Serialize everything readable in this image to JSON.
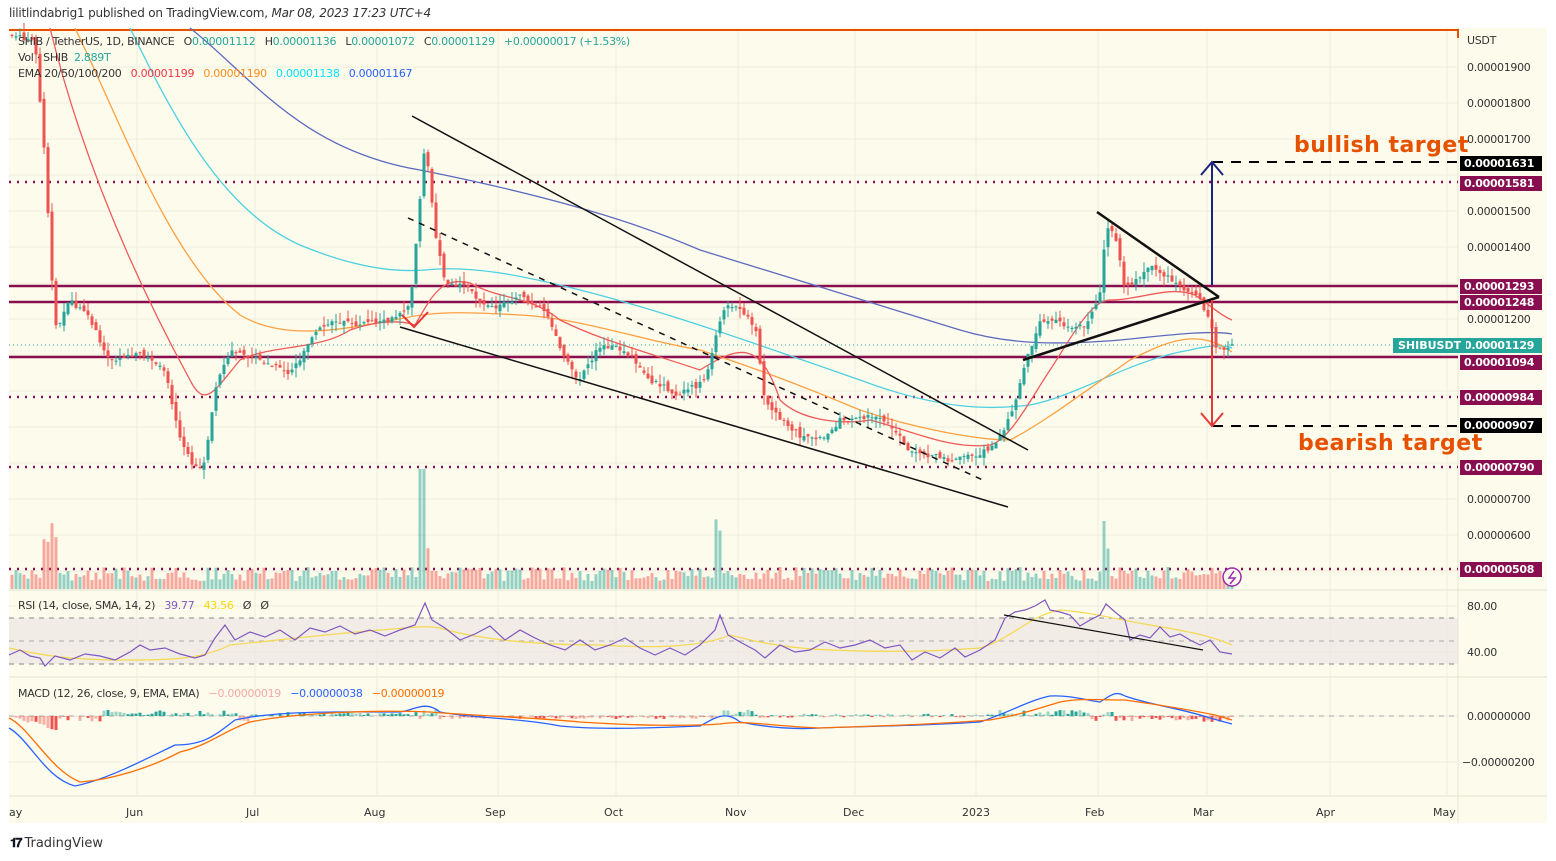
{
  "publish": {
    "author": "lilitlindabrig1",
    "text": "published on TradingView.com,",
    "date": "Mar 08, 2023 17:23 UTC+4"
  },
  "legend": {
    "symbol": "SHIB / TetherUS, 1D, BINANCE",
    "open_label": "O",
    "open": "0.00001112",
    "high_label": "H",
    "high": "0.00001136",
    "low_label": "L",
    "low": "0.00001072",
    "close_label": "C",
    "close": "0.00001129",
    "change": "+0.00000017 (+1.53%)",
    "vol_label": "Vol · SHIB",
    "vol": "2.889T",
    "ema_label": "EMA 20/50/100/200",
    "ema20": "0.00001199",
    "ema50": "0.00001190",
    "ema100": "0.00001138",
    "ema200": "0.00001167"
  },
  "rsi_legend": {
    "label": "RSI (14, close, SMA, 14, 2)",
    "rsi": "39.77",
    "sma": "43.56",
    "na1": "Ø",
    "na2": "Ø"
  },
  "macd_legend": {
    "label": "MACD (12, 26, close, 9, EMA, EMA)",
    "hist": "−0.00000019",
    "macd": "−0.00000038",
    "signal": "−0.00000019"
  },
  "price_axis": {
    "currency": "USDT",
    "ticks": [
      "0.00001900",
      "0.00001800",
      "0.00001700",
      "0.00001500",
      "0.00001400",
      "0.00001200",
      "0.00000700",
      "0.00000600"
    ]
  },
  "rsi_axis": {
    "ticks": [
      "80.00",
      "40.00"
    ]
  },
  "macd_axis": {
    "ticks": [
      "0.00000000",
      "−0.00000200"
    ]
  },
  "price_tags": {
    "bull_target": "0.00001631",
    "r1581": "0.00001581",
    "r1293": "0.00001293",
    "r1248": "0.00001248",
    "last": "0.00001129",
    "s1094": "0.00001094",
    "s984": "0.00000984",
    "bear_target": "0.00000907",
    "s790": "0.00000790",
    "s508": "0.00000508",
    "symbol": "SHIBUSDT"
  },
  "annotations": {
    "bullish": "bullish target",
    "bearish": "bearish target"
  },
  "time_axis": [
    "ay",
    "Jun",
    "Jul",
    "Aug",
    "Sep",
    "Oct",
    "Nov",
    "Dec",
    "2023",
    "Feb",
    "Mar",
    "Apr",
    "May"
  ],
  "footer": {
    "brand": "TradingView"
  },
  "colors": {
    "background": "#fdfbec",
    "up": "#26a69a",
    "down": "#ef5350",
    "level": "#880e4f",
    "annotation": "#e65100",
    "ema20": "#f23645",
    "ema50": "#ff9800",
    "ema100": "#4dd0e1",
    "ema200": "#3f51f5"
  },
  "chart_data": {
    "type": "candlestick",
    "title": "SHIB / TetherUS, 1D, BINANCE",
    "xlabel": "",
    "ylabel": "USDT",
    "x_ticks": [
      "May",
      "Jun",
      "Jul",
      "Aug",
      "Sep",
      "Oct",
      "Nov",
      "Dec",
      "2023",
      "Feb",
      "Mar",
      "Apr",
      "May"
    ],
    "ylim": [
      4.5e-06,
      1.95e-05
    ],
    "last_bar": {
      "open": 1.112e-05,
      "high": 1.136e-05,
      "low": 1.072e-05,
      "close": 1.129e-05,
      "change": 1.7e-07,
      "change_pct": 1.53
    },
    "approx_closes_by_month": [
      {
        "month": "May 2022",
        "close": 1.15e-05
      },
      {
        "month": "Jun 2022",
        "close": 9.5e-06
      },
      {
        "month": "Jul 2022",
        "close": 1.17e-05
      },
      {
        "month": "Aug 2022",
        "close": 1.26e-05
      },
      {
        "month": "Sep 2022",
        "close": 1.14e-05
      },
      {
        "month": "Oct 2022",
        "close": 1.05e-05
      },
      {
        "month": "Nov 2022",
        "close": 9.2e-06
      },
      {
        "month": "Dec 2022",
        "close": 8.3e-06
      },
      {
        "month": "Jan 2023",
        "close": 1.2e-05
      },
      {
        "month": "Feb 2023",
        "close": 1.23e-05
      },
      {
        "month": "Mar 2023",
        "close": 1.129e-05
      }
    ],
    "horizontal_levels": [
      {
        "value": 1.631e-05,
        "style": "dashed",
        "label": "bullish target"
      },
      {
        "value": 1.581e-05,
        "style": "dotted"
      },
      {
        "value": 1.293e-05,
        "style": "solid"
      },
      {
        "value": 1.248e-05,
        "style": "solid"
      },
      {
        "value": 1.094e-05,
        "style": "solid"
      },
      {
        "value": 9.84e-06,
        "style": "dotted"
      },
      {
        "value": 9.07e-06,
        "style": "dashed",
        "label": "bearish target"
      },
      {
        "value": 7.9e-06,
        "style": "dotted"
      },
      {
        "value": 5.08e-06,
        "style": "dotted"
      }
    ],
    "indicators": {
      "ema": {
        "ema20": 1.199e-05,
        "ema50": 1.19e-05,
        "ema100": 1.138e-05,
        "ema200": 1.167e-05
      },
      "volume": "2.889T",
      "rsi": {
        "value": 39.77,
        "sma": 43.56,
        "bands": [
          30,
          50,
          70
        ]
      },
      "macd": {
        "hist": -1.9e-07,
        "macd": -3.8e-07,
        "signal": -1.9e-07
      }
    },
    "patterns": [
      "descending channel (Aug–Dec 2022)",
      "symmetrical triangle (Feb–Mar 2023)",
      "RSI descending trendline"
    ]
  }
}
